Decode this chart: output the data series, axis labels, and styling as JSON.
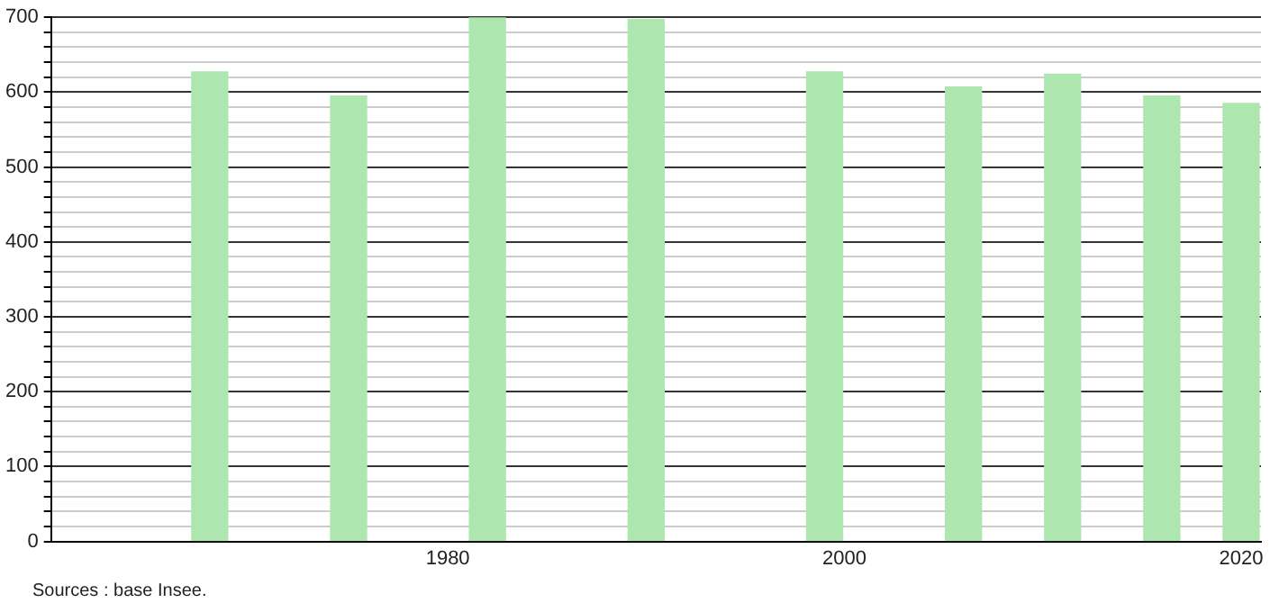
{
  "chart_data": {
    "type": "bar",
    "x": [
      1968,
      1975,
      1982,
      1990,
      1999,
      2006,
      2011,
      2016,
      2020
    ],
    "values": [
      627,
      595,
      700,
      697,
      627,
      607,
      624,
      595,
      585
    ],
    "color": "#aee6b0",
    "xlim": [
      1960,
      2021
    ],
    "xticks": [
      1980,
      2000,
      2020
    ],
    "ylim": [
      0,
      700
    ],
    "yticks": [
      0,
      {
        "value": 20,
        "label": null
      },
      {
        "value": 40,
        "label": null
      },
      {
        "value": 60,
        "label": null
      },
      {
        "value": 80,
        "label": null
      },
      100,
      {
        "value": 120,
        "label": null
      },
      {
        "value": 140,
        "label": null
      },
      {
        "value": 160,
        "label": null
      },
      {
        "value": 180,
        "label": null
      },
      200,
      {
        "value": 220,
        "label": null
      },
      {
        "value": 240,
        "label": null
      },
      {
        "value": 260,
        "label": null
      },
      {
        "value": 280,
        "label": null
      },
      300,
      {
        "value": 320,
        "label": null
      },
      {
        "value": 340,
        "label": null
      },
      {
        "value": 360,
        "label": null
      },
      {
        "value": 380,
        "label": null
      },
      400,
      {
        "value": 420,
        "label": null
      },
      {
        "value": 440,
        "label": null
      },
      {
        "value": 460,
        "label": null
      },
      {
        "value": 480,
        "label": null
      },
      500,
      {
        "value": 520,
        "label": null
      },
      {
        "value": 540,
        "label": null
      },
      {
        "value": 560,
        "label": null
      },
      {
        "value": 580,
        "label": null
      },
      600,
      {
        "value": 620,
        "label": null
      },
      {
        "value": 640,
        "label": null
      },
      {
        "value": 660,
        "label": null
      },
      {
        "value": 680,
        "label": null
      },
      700
    ],
    "grid": "y",
    "legend": false,
    "annotations": [
      "Sources : base Insee."
    ]
  }
}
